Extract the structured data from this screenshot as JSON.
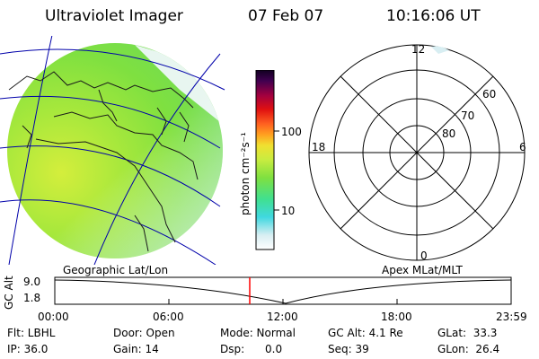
{
  "header": {
    "title": "Ultraviolet Imager",
    "date": "07 Feb 07",
    "time": "10:16:06 UT"
  },
  "colorbar": {
    "label": "photon cm⁻²s⁻¹",
    "ticks": [
      "100",
      "10"
    ]
  },
  "polar": {
    "mlt_labels": {
      "top": "12",
      "left": "18",
      "right": "6",
      "bottom": "0"
    },
    "lat_labels": [
      "60",
      "70",
      "80"
    ]
  },
  "strip": {
    "left_label": "Geographic Lat/Lon",
    "right_label": "Apex MLat/MLT",
    "axis_title": "GC Alt",
    "y_ticks": [
      "9.0",
      "1.8"
    ],
    "x_ticks": [
      "00:00",
      "06:00",
      "12:00",
      "18:00",
      "23:59"
    ]
  },
  "info": {
    "filter": "Flt: LBHL",
    "ip": "IP: 36.0",
    "door": "Door: Open",
    "gain": "Gain: 14",
    "mode": "Mode: Normal",
    "dsp": "Dsp:      0.0",
    "gc_alt": "GC Alt: 4.1 Re",
    "seq": "Seq: 39",
    "glat": "GLat:  33.3",
    "glon": "GLon:  26.4"
  },
  "colors": {
    "background": "#ffffff",
    "disk_main": "#7fe040",
    "disk_bright": "#c8ec40",
    "marker": "#ff0000"
  }
}
